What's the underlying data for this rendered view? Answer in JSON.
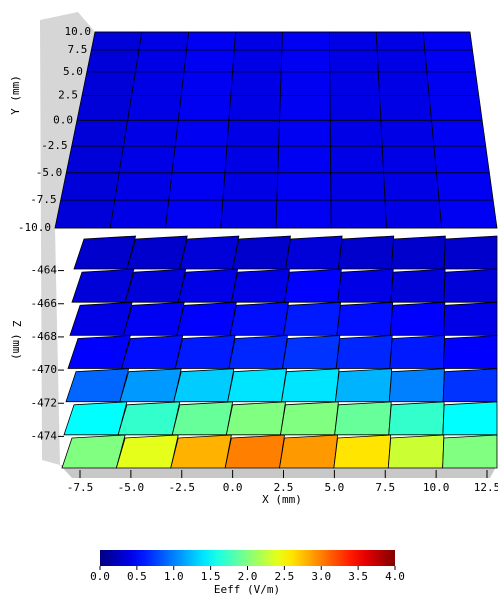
{
  "chart_data": {
    "type": "slices3d",
    "xlabel": "X (mm)",
    "ylabel": "Y (mm)",
    "zlabel": "Z (mm)",
    "colorbar_label": "Eeff (V/m)",
    "xlim": [
      -7.5,
      12.5
    ],
    "xticks": [
      {
        "value": -7.5,
        "label": "-7.5"
      },
      {
        "value": -5,
        "label": "-5.0"
      },
      {
        "value": -2.5,
        "label": "-2.5"
      },
      {
        "value": 0,
        "label": "0.0"
      },
      2.5,
      {
        "value": 5,
        "label": "5.0"
      },
      7.5,
      {
        "value": 10,
        "label": "10.0"
      },
      12.5
    ],
    "ylim": [
      -10,
      10
    ],
    "yticks": [
      {
        "value": 10,
        "label": "10.0"
      },
      7.5,
      {
        "value": 5,
        "label": "5.0"
      },
      2.5,
      {
        "value": 0,
        "label": "0.0"
      },
      -2.5,
      {
        "value": -5,
        "label": "-5.0"
      },
      -7.5,
      {
        "value": -10,
        "label": "-10.0"
      }
    ],
    "zlim": [
      -475,
      -463
    ],
    "zticks": [
      -464,
      -466,
      -468,
      -470,
      -472,
      -474
    ],
    "clim": [
      0,
      4
    ],
    "cticks": [
      {
        "value": 0,
        "label": "0.0"
      },
      0.5,
      {
        "value": 1,
        "label": "1.0"
      },
      1.5,
      {
        "value": 2,
        "label": "2.0"
      },
      2.5,
      {
        "value": 3,
        "label": "3.0"
      },
      3.5,
      {
        "value": 4,
        "label": "4.0"
      }
    ],
    "top_plane": {
      "values": [
        0.35,
        0.4,
        0.45,
        0.4,
        0.45,
        0.4,
        0.4,
        0.45
      ]
    },
    "slices": [
      {
        "z": -463,
        "values": [
          0.3,
          0.3,
          0.35,
          0.3,
          0.35,
          0.3,
          0.3,
          0.3
        ]
      },
      {
        "z": -465,
        "values": [
          0.35,
          0.35,
          0.4,
          0.4,
          0.5,
          0.4,
          0.35,
          0.35
        ]
      },
      {
        "z": -467,
        "values": [
          0.4,
          0.45,
          0.5,
          0.55,
          0.6,
          0.55,
          0.5,
          0.4
        ]
      },
      {
        "z": -469,
        "values": [
          0.5,
          0.55,
          0.6,
          0.65,
          0.7,
          0.65,
          0.6,
          0.5
        ]
      },
      {
        "z": -471,
        "values": [
          0.9,
          1.1,
          1.3,
          1.4,
          1.4,
          1.2,
          1.0,
          0.7
        ]
      },
      {
        "z": -473,
        "values": [
          1.5,
          1.7,
          1.9,
          2.0,
          2.0,
          1.9,
          1.7,
          1.5
        ]
      },
      {
        "z": -475,
        "values": [
          2.0,
          2.4,
          2.8,
          3.0,
          2.9,
          2.6,
          2.3,
          2.0
        ]
      }
    ]
  }
}
